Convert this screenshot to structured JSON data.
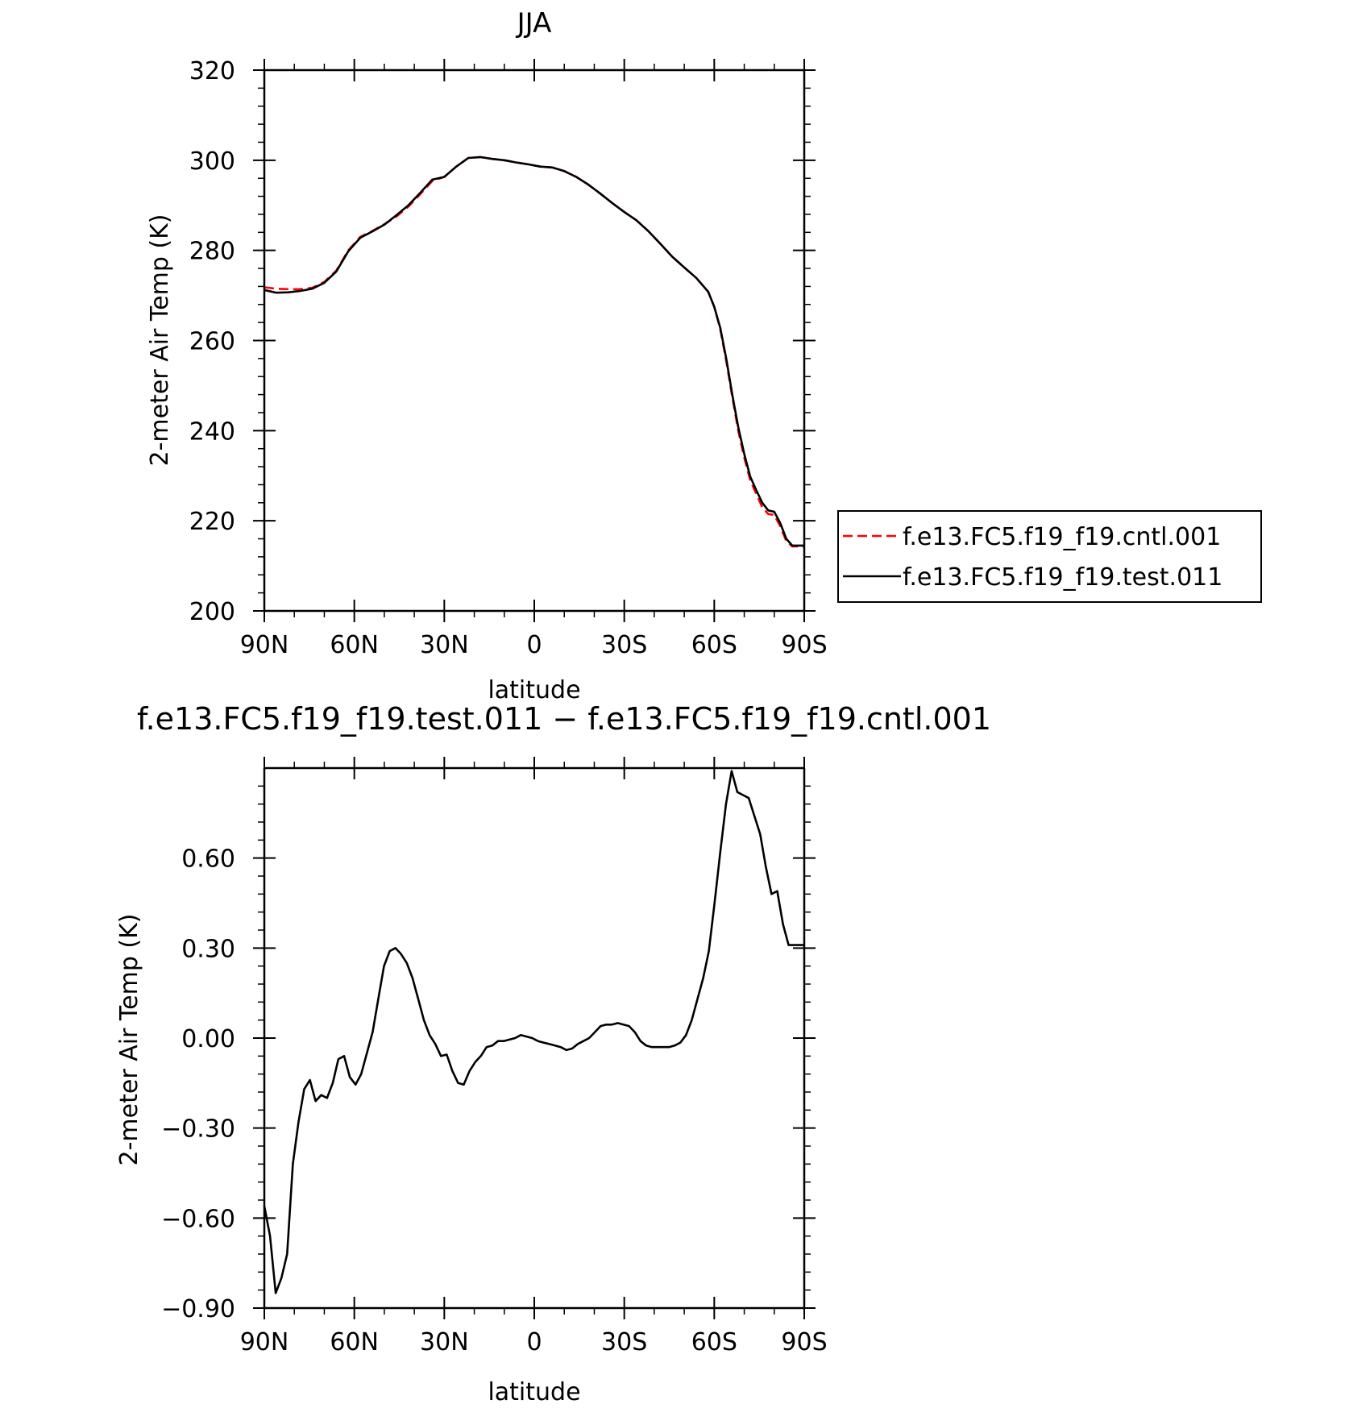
{
  "chart_data": [
    {
      "type": "line",
      "title": "JJA",
      "xlabel": "latitude",
      "ylabel": "2-meter Air Temp (K)",
      "xlim": [
        90,
        -90
      ],
      "ylim": [
        200,
        320
      ],
      "x_ticks": [
        90,
        60,
        30,
        0,
        -30,
        -60,
        -90
      ],
      "x_tick_labels": [
        "90N",
        "60N",
        "30N",
        "0",
        "30S",
        "60S",
        "90S"
      ],
      "y_ticks": [
        200,
        220,
        240,
        260,
        280,
        300,
        320
      ],
      "y_tick_labels": [
        "200",
        "220",
        "240",
        "260",
        "280",
        "300",
        "320"
      ],
      "legend_position": "right",
      "series": [
        {
          "name": "f.e13.FC5.f19_f19.cntl.001",
          "color": "#ff0000",
          "dash": "dashed",
          "x": [
            90,
            86,
            82,
            78,
            74,
            70,
            66,
            62,
            58,
            54,
            50,
            46,
            42,
            38,
            34,
            30,
            26,
            22,
            18,
            14,
            10,
            6,
            2,
            -2,
            -6,
            -10,
            -14,
            -18,
            -22,
            -26,
            -30,
            -34,
            -38,
            -42,
            -46,
            -50,
            -54,
            -58,
            -60,
            -62,
            -64,
            -66,
            -68,
            -70,
            -72,
            -74,
            -76,
            -78,
            -80,
            -82,
            -84,
            -86,
            -88,
            -90
          ],
          "values": [
            271.8,
            271.5,
            271.4,
            271.4,
            271.7,
            273.0,
            275.5,
            280.0,
            283.0,
            284.3,
            285.8,
            287.5,
            289.7,
            292.5,
            295.4,
            296.3,
            298.6,
            300.5,
            300.7,
            300.3,
            300.0,
            299.5,
            299.1,
            298.6,
            298.4,
            297.6,
            296.3,
            294.6,
            292.6,
            290.5,
            288.5,
            286.7,
            284.3,
            281.5,
            278.6,
            276.2,
            273.9,
            270.8,
            267.5,
            262.5,
            255.5,
            247.5,
            240.0,
            234.0,
            229.0,
            226.0,
            223.0,
            221.5,
            221.3,
            218.8,
            215.5,
            214.3,
            214.3,
            214.2
          ]
        },
        {
          "name": "f.e13.FC5.f19_f19.test.011",
          "color": "#000000",
          "dash": "solid",
          "x": [
            90,
            86,
            82,
            78,
            74,
            70,
            66,
            62,
            58,
            54,
            50,
            46,
            42,
            38,
            34,
            30,
            26,
            22,
            18,
            14,
            10,
            6,
            2,
            -2,
            -6,
            -10,
            -14,
            -18,
            -22,
            -26,
            -30,
            -34,
            -38,
            -42,
            -46,
            -50,
            -54,
            -58,
            -60,
            -62,
            -64,
            -66,
            -68,
            -70,
            -72,
            -74,
            -76,
            -78,
            -80,
            -82,
            -84,
            -86,
            -88,
            -90
          ],
          "values": [
            271.2,
            270.6,
            270.7,
            271.0,
            271.5,
            272.8,
            275.3,
            279.8,
            282.8,
            284.2,
            285.7,
            287.8,
            290.0,
            292.8,
            295.7,
            296.3,
            298.6,
            300.5,
            300.7,
            300.3,
            300.0,
            299.5,
            299.1,
            298.6,
            298.4,
            297.6,
            296.3,
            294.6,
            292.6,
            290.5,
            288.5,
            286.7,
            284.3,
            281.5,
            278.6,
            276.2,
            273.9,
            270.8,
            267.5,
            262.8,
            256.0,
            248.0,
            240.8,
            234.8,
            229.8,
            226.8,
            224.0,
            222.3,
            222.0,
            219.5,
            216.0,
            214.5,
            214.5,
            214.5
          ]
        }
      ]
    },
    {
      "type": "line",
      "title": "f.e13.FC5.f19_f19.test.011 − f.e13.FC5.f19_f19.cntl.001",
      "xlabel": "latitude",
      "ylabel": "2-meter Air Temp (K)",
      "xlim": [
        90,
        -90
      ],
      "ylim": [
        -0.9,
        0.9
      ],
      "x_ticks": [
        90,
        60,
        30,
        0,
        -30,
        -60,
        -90
      ],
      "x_tick_labels": [
        "90N",
        "60N",
        "30N",
        "0",
        "30S",
        "60S",
        "90S"
      ],
      "y_ticks": [
        -0.9,
        -0.6,
        -0.3,
        0.0,
        0.3,
        0.6
      ],
      "y_tick_labels": [
        "−0.90",
        "−0.60",
        "−0.30",
        "0.00",
        "0.30",
        "0.60"
      ],
      "series": [
        {
          "color": "#000000",
          "x": [
            90.0,
            88.1,
            86.2,
            84.3,
            82.4,
            80.5,
            78.6,
            76.7,
            74.8,
            72.9,
            71.0,
            69.1,
            67.2,
            65.3,
            63.4,
            61.5,
            59.6,
            57.7,
            55.8,
            53.9,
            52.0,
            50.1,
            48.2,
            46.3,
            44.4,
            42.5,
            40.6,
            38.7,
            36.8,
            34.9,
            33.0,
            31.1,
            29.2,
            27.3,
            25.4,
            23.5,
            21.6,
            19.7,
            17.8,
            15.9,
            14.0,
            12.1,
            10.2,
            8.3,
            6.4,
            4.5,
            2.6,
            0.7,
            -1.2,
            -3.1,
            -5.0,
            -6.9,
            -8.8,
            -10.7,
            -12.6,
            -14.5,
            -16.4,
            -18.3,
            -20.2,
            -22.1,
            -24.0,
            -25.9,
            -27.8,
            -29.7,
            -31.6,
            -33.5,
            -35.4,
            -37.3,
            -39.2,
            -41.1,
            -43.0,
            -44.9,
            -46.8,
            -48.7,
            -50.6,
            -52.5,
            -54.4,
            -56.3,
            -58.2,
            -60.1,
            -62.0,
            -63.9,
            -65.8,
            -67.7,
            -69.6,
            -71.5,
            -73.4,
            -75.3,
            -77.2,
            -79.1,
            -81.0,
            -82.9,
            -84.8,
            -86.7,
            -88.6,
            -90.0
          ],
          "values": [
            -0.56,
            -0.66,
            -0.85,
            -0.8,
            -0.72,
            -0.42,
            -0.28,
            -0.17,
            -0.14,
            -0.21,
            -0.19,
            -0.2,
            -0.15,
            -0.07,
            -0.06,
            -0.13,
            -0.155,
            -0.12,
            -0.05,
            0.02,
            0.13,
            0.24,
            0.29,
            0.3,
            0.28,
            0.25,
            0.2,
            0.13,
            0.06,
            0.01,
            -0.02,
            -0.06,
            -0.055,
            -0.11,
            -0.15,
            -0.155,
            -0.11,
            -0.08,
            -0.06,
            -0.03,
            -0.025,
            -0.01,
            -0.01,
            -0.005,
            0.0,
            0.01,
            0.005,
            0.0,
            -0.01,
            -0.015,
            -0.02,
            -0.025,
            -0.03,
            -0.04,
            -0.035,
            -0.02,
            -0.01,
            0.0,
            0.02,
            0.04,
            0.045,
            0.045,
            0.05,
            0.045,
            0.04,
            0.02,
            -0.01,
            -0.025,
            -0.03,
            -0.03,
            -0.03,
            -0.03,
            -0.025,
            -0.015,
            0.01,
            0.06,
            0.13,
            0.2,
            0.29,
            0.45,
            0.62,
            0.78,
            0.89,
            0.82,
            0.81,
            0.8,
            0.74,
            0.68,
            0.57,
            0.48,
            0.49,
            0.38,
            0.31,
            0.31,
            0.31,
            0.31
          ]
        }
      ]
    }
  ]
}
